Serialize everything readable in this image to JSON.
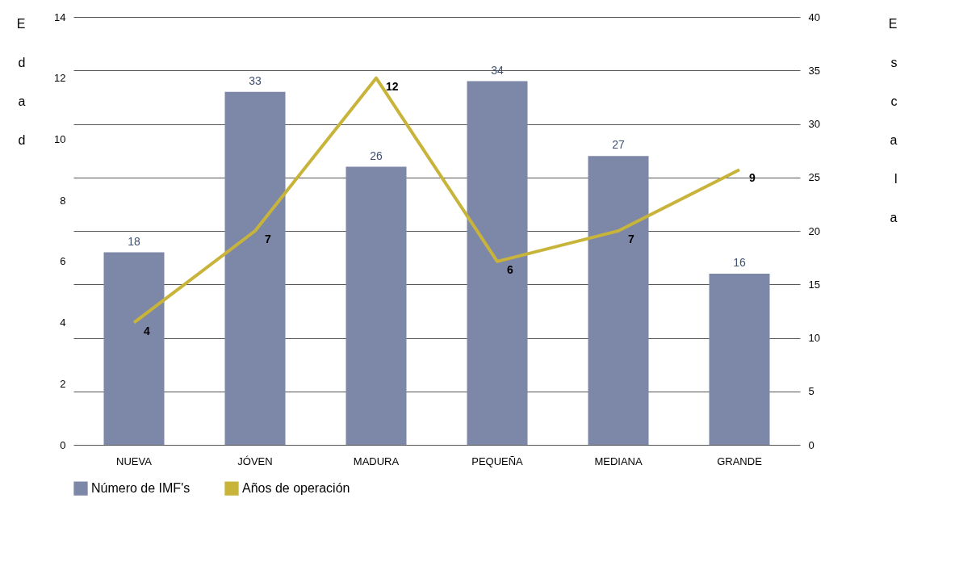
{
  "chart_data": {
    "type": "bar",
    "ylabel": "Edad",
    "y2label": "Escala",
    "categories": [
      "NUEVA",
      "JÓVEN",
      "MADURA",
      "PEQUEÑA",
      "MEDIANA",
      "GRANDE"
    ],
    "series": [
      {
        "name": "Número de IMF's",
        "axis": "y2",
        "color": "#7d87a8",
        "values": [
          18,
          33,
          26,
          34,
          27,
          16
        ]
      },
      {
        "name": "Años de operación",
        "type": "line",
        "color": "#c8b43a",
        "values": [
          4,
          7,
          12,
          6,
          7,
          9
        ]
      }
    ],
    "ylim": [
      0,
      14
    ],
    "yticks": [
      0,
      2,
      4,
      6,
      8,
      10,
      12,
      14
    ],
    "y2lim": [
      0,
      40
    ],
    "y2ticks": [
      0,
      5,
      10,
      15,
      20,
      25,
      30,
      35,
      40
    ],
    "grid": true,
    "data_labels": true,
    "legend": "bottom",
    "marker": "none"
  }
}
